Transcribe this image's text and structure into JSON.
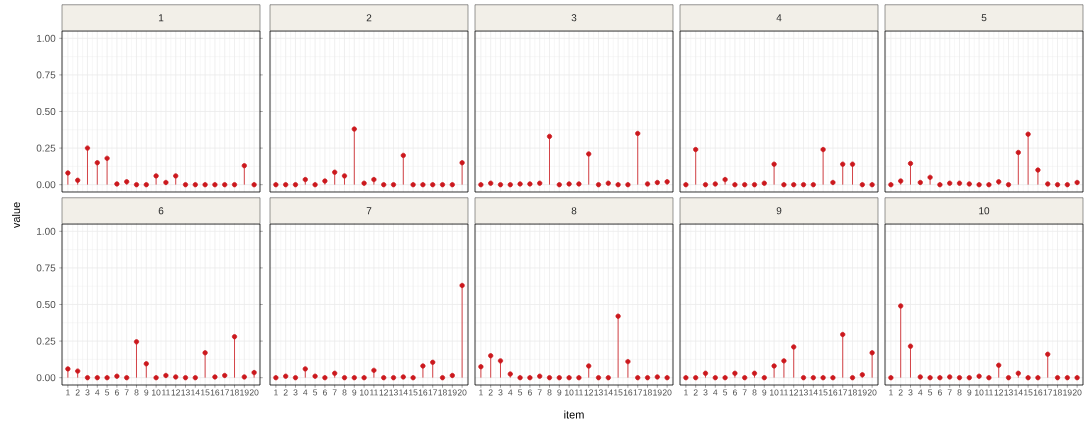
{
  "chart_data": [
    {
      "type": "lollipop",
      "title": "1",
      "ylabel": "value",
      "tick_labels": "y",
      "grid": true,
      "color": "#cb181d",
      "ylim": [
        -0.05,
        1.05
      ],
      "yticks": [
        {
          "value": 0,
          "label": "0.00"
        },
        {
          "value": 0.25,
          "label": "0.25"
        },
        {
          "value": 0.5,
          "label": "0.50"
        },
        {
          "value": 0.75,
          "label": "0.75"
        },
        {
          "value": 1,
          "label": "1.00"
        }
      ],
      "categories": [
        "1",
        "2",
        "3",
        "4",
        "5",
        "6",
        "7",
        "8",
        "9",
        "10",
        "11",
        "12",
        "13",
        "14",
        "15",
        "16",
        "17",
        "18",
        "19",
        "20"
      ],
      "values": [
        0.08,
        0.03,
        0.25,
        0.15,
        0.18,
        0.005,
        0.02,
        0,
        0,
        0.06,
        0.015,
        0.06,
        0,
        0,
        0,
        0,
        0,
        0,
        0.13,
        0
      ]
    },
    {
      "type": "lollipop",
      "title": "2",
      "tick_labels": false,
      "grid": true,
      "color": "#cb181d",
      "ylim": [
        -0.05,
        1.05
      ],
      "yticks": [
        {
          "value": 0,
          "label": null
        },
        {
          "value": 0.25,
          "label": null
        },
        {
          "value": 0.5,
          "label": null
        },
        {
          "value": 0.75,
          "label": null
        },
        {
          "value": 1,
          "label": null
        }
      ],
      "categories": [
        "1",
        "2",
        "3",
        "4",
        "5",
        "6",
        "7",
        "8",
        "9",
        "10",
        "11",
        "12",
        "13",
        "14",
        "15",
        "16",
        "17",
        "18",
        "19",
        "20"
      ],
      "values": [
        0,
        0,
        0,
        0.035,
        0,
        0.025,
        0.085,
        0.06,
        0.38,
        0.01,
        0.035,
        0,
        0,
        0.2,
        0,
        0,
        0,
        0,
        0,
        0.15
      ]
    },
    {
      "type": "lollipop",
      "title": "3",
      "tick_labels": false,
      "grid": true,
      "color": "#cb181d",
      "ylim": [
        -0.05,
        1.05
      ],
      "yticks": [
        {
          "value": 0,
          "label": null
        },
        {
          "value": 0.25,
          "label": null
        },
        {
          "value": 0.5,
          "label": null
        },
        {
          "value": 0.75,
          "label": null
        },
        {
          "value": 1,
          "label": null
        }
      ],
      "categories": [
        "1",
        "2",
        "3",
        "4",
        "5",
        "6",
        "7",
        "8",
        "9",
        "10",
        "11",
        "12",
        "13",
        "14",
        "15",
        "16",
        "17",
        "18",
        "19",
        "20"
      ],
      "values": [
        0,
        0.01,
        0,
        0,
        0.005,
        0.005,
        0.01,
        0.33,
        0,
        0.005,
        0.005,
        0.21,
        0,
        0.01,
        0,
        0,
        0.35,
        0.005,
        0.015,
        0.02
      ]
    },
    {
      "type": "lollipop",
      "title": "4",
      "tick_labels": false,
      "grid": true,
      "color": "#cb181d",
      "ylim": [
        -0.05,
        1.05
      ],
      "yticks": [
        {
          "value": 0,
          "label": null
        },
        {
          "value": 0.25,
          "label": null
        },
        {
          "value": 0.5,
          "label": null
        },
        {
          "value": 0.75,
          "label": null
        },
        {
          "value": 1,
          "label": null
        }
      ],
      "categories": [
        "1",
        "2",
        "3",
        "4",
        "5",
        "6",
        "7",
        "8",
        "9",
        "10",
        "11",
        "12",
        "13",
        "14",
        "15",
        "16",
        "17",
        "18",
        "19",
        "20"
      ],
      "values": [
        0,
        0.24,
        0,
        0.005,
        0.035,
        0,
        0,
        0,
        0.01,
        0.14,
        0,
        0,
        0,
        0,
        0.24,
        0.015,
        0.14,
        0.14,
        0,
        0
      ]
    },
    {
      "type": "lollipop",
      "title": "5",
      "tick_labels": false,
      "grid": true,
      "color": "#cb181d",
      "ylim": [
        -0.05,
        1.05
      ],
      "yticks": [
        {
          "value": 0,
          "label": null
        },
        {
          "value": 0.25,
          "label": null
        },
        {
          "value": 0.5,
          "label": null
        },
        {
          "value": 0.75,
          "label": null
        },
        {
          "value": 1,
          "label": null
        }
      ],
      "categories": [
        "1",
        "2",
        "3",
        "4",
        "5",
        "6",
        "7",
        "8",
        "9",
        "10",
        "11",
        "12",
        "13",
        "14",
        "15",
        "16",
        "17",
        "18",
        "19",
        "20"
      ],
      "values": [
        0,
        0.025,
        0.145,
        0.015,
        0.05,
        0,
        0.01,
        0.01,
        0.005,
        0,
        0,
        0.02,
        0,
        0.22,
        0.345,
        0.1,
        0.005,
        0,
        0,
        0.015
      ]
    },
    {
      "type": "lollipop",
      "title": "6",
      "grid": true,
      "color": "#cb181d",
      "ylim": [
        -0.05,
        1.05
      ],
      "yticks": [
        {
          "value": 0,
          "label": "0.00"
        },
        {
          "value": 0.25,
          "label": "0.25"
        },
        {
          "value": 0.5,
          "label": "0.50"
        },
        {
          "value": 0.75,
          "label": "0.75"
        },
        {
          "value": 1,
          "label": "1.00"
        }
      ],
      "categories": [
        "1",
        "2",
        "3",
        "4",
        "5",
        "6",
        "7",
        "8",
        "9",
        "10",
        "11",
        "12",
        "13",
        "14",
        "15",
        "16",
        "17",
        "18",
        "19",
        "20"
      ],
      "values": [
        0.06,
        0.045,
        0,
        0,
        0,
        0.01,
        0,
        0.245,
        0.095,
        0,
        0.015,
        0.005,
        0,
        0,
        0.17,
        0.005,
        0.015,
        0.28,
        0.005,
        0.035
      ]
    },
    {
      "type": "lollipop",
      "title": "7",
      "tick_labels": "x",
      "grid": true,
      "color": "#cb181d",
      "ylim": [
        -0.05,
        1.05
      ],
      "yticks": [
        {
          "value": 0,
          "label": null
        },
        {
          "value": 0.25,
          "label": null
        },
        {
          "value": 0.5,
          "label": null
        },
        {
          "value": 0.75,
          "label": null
        },
        {
          "value": 1,
          "label": null
        }
      ],
      "categories": [
        "1",
        "2",
        "3",
        "4",
        "5",
        "6",
        "7",
        "8",
        "9",
        "10",
        "11",
        "12",
        "13",
        "14",
        "15",
        "16",
        "17",
        "18",
        "19",
        "20"
      ],
      "values": [
        0,
        0.01,
        0,
        0.06,
        0.01,
        0,
        0.03,
        0,
        0,
        0,
        0.05,
        0,
        0,
        0.005,
        0,
        0.08,
        0.105,
        0,
        0.015,
        0.63
      ]
    },
    {
      "type": "lollipop",
      "title": "8",
      "xlabel": "item",
      "tick_labels": "x",
      "grid": true,
      "color": "#cb181d",
      "ylim": [
        -0.05,
        1.05
      ],
      "yticks": [
        {
          "value": 0,
          "label": null
        },
        {
          "value": 0.25,
          "label": null
        },
        {
          "value": 0.5,
          "label": null
        },
        {
          "value": 0.75,
          "label": null
        },
        {
          "value": 1,
          "label": null
        }
      ],
      "categories": [
        "1",
        "2",
        "3",
        "4",
        "5",
        "6",
        "7",
        "8",
        "9",
        "10",
        "11",
        "12",
        "13",
        "14",
        "15",
        "16",
        "17",
        "18",
        "19",
        "20"
      ],
      "values": [
        0.075,
        0.15,
        0.115,
        0.025,
        0,
        0,
        0.01,
        0,
        0,
        0,
        0,
        0.08,
        0,
        0,
        0.42,
        0.11,
        0,
        0,
        0.005,
        0
      ]
    },
    {
      "type": "lollipop",
      "title": "9",
      "tick_labels": "x",
      "grid": true,
      "color": "#cb181d",
      "ylim": [
        -0.05,
        1.05
      ],
      "yticks": [
        {
          "value": 0,
          "label": null
        },
        {
          "value": 0.25,
          "label": null
        },
        {
          "value": 0.5,
          "label": null
        },
        {
          "value": 0.75,
          "label": null
        },
        {
          "value": 1,
          "label": null
        }
      ],
      "categories": [
        "1",
        "2",
        "3",
        "4",
        "5",
        "6",
        "7",
        "8",
        "9",
        "10",
        "11",
        "12",
        "13",
        "14",
        "15",
        "16",
        "17",
        "18",
        "19",
        "20"
      ],
      "values": [
        0,
        0,
        0.03,
        0,
        0,
        0.03,
        0,
        0.03,
        0,
        0.08,
        0.115,
        0.21,
        0,
        0,
        0,
        0,
        0.295,
        0,
        0.02,
        0.17
      ]
    },
    {
      "type": "lollipop",
      "title": "10",
      "tick_labels": "x",
      "grid": true,
      "color": "#cb181d",
      "ylim": [
        -0.05,
        1.05
      ],
      "yticks": [
        {
          "value": 0,
          "label": null
        },
        {
          "value": 0.25,
          "label": null
        },
        {
          "value": 0.5,
          "label": null
        },
        {
          "value": 0.75,
          "label": null
        },
        {
          "value": 1,
          "label": null
        }
      ],
      "categories": [
        "1",
        "2",
        "3",
        "4",
        "5",
        "6",
        "7",
        "8",
        "9",
        "10",
        "11",
        "12",
        "13",
        "14",
        "15",
        "16",
        "17",
        "18",
        "19",
        "20"
      ],
      "values": [
        0,
        0.49,
        0.215,
        0.005,
        0,
        0,
        0.005,
        0,
        0,
        0.01,
        0,
        0.085,
        0,
        0.03,
        0,
        0,
        0.16,
        0,
        0,
        0
      ]
    }
  ]
}
